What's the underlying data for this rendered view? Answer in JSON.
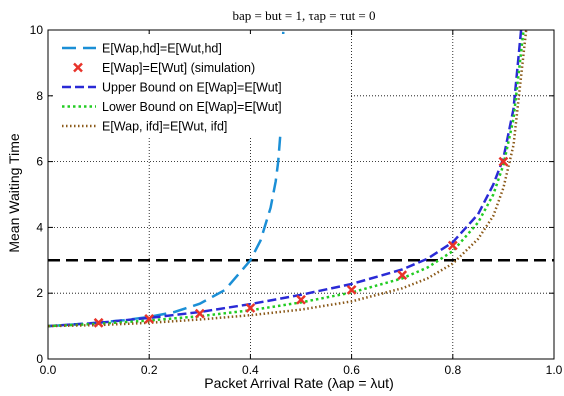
{
  "chart_data": {
    "type": "line",
    "title": "bap = but = 1, τap = τut = 0",
    "xlabel": "Packet Arrival Rate (λap = λut)",
    "ylabel": "Mean Waiting Time",
    "xlim": [
      0,
      1
    ],
    "ylim": [
      0,
      10
    ],
    "x_ticks": [
      0.0,
      0.2,
      0.4,
      0.6,
      0.8,
      1.0
    ],
    "x_tick_labels": [
      "0.0",
      "0.2",
      "0.4",
      "0.6",
      "0.8",
      "1.0"
    ],
    "y_ticks": [
      0,
      2,
      4,
      6,
      8,
      10
    ],
    "y_tick_labels": [
      "0",
      "2",
      "4",
      "6",
      "8",
      "10"
    ],
    "grid": true,
    "legend_position": "top-left",
    "reference_line": {
      "y": 3,
      "color": "#000000",
      "style": "dashed"
    },
    "series": [
      {
        "name": "E[Wap,hd]=E[Wut,hd]",
        "color": "#1b8fd6",
        "style": "longdash",
        "x": [
          0,
          0.05,
          0.1,
          0.15,
          0.2,
          0.25,
          0.3,
          0.35,
          0.4,
          0.42,
          0.44,
          0.45,
          0.455,
          0.46,
          0.465
        ],
        "y": [
          1.0,
          1.05,
          1.11,
          1.18,
          1.28,
          1.43,
          1.68,
          2.1,
          3.0,
          3.6,
          4.6,
          5.4,
          6.0,
          7.0,
          10.0
        ]
      },
      {
        "name": "E[Wap]=E[Wut] (simulation)",
        "color": "#e8332a",
        "style": "marker-x",
        "x": [
          0.1,
          0.2,
          0.3,
          0.4,
          0.5,
          0.6,
          0.7,
          0.8,
          0.9
        ],
        "y": [
          1.1,
          1.22,
          1.38,
          1.55,
          1.8,
          2.1,
          2.55,
          3.45,
          6.0
        ]
      },
      {
        "name": "Upper Bound on E[Wap]=E[Wut]",
        "color": "#2a2ad6",
        "style": "dashed",
        "x": [
          0,
          0.1,
          0.2,
          0.3,
          0.4,
          0.5,
          0.6,
          0.7,
          0.75,
          0.8,
          0.85,
          0.88,
          0.9,
          0.92,
          0.935
        ],
        "y": [
          1.0,
          1.1,
          1.25,
          1.43,
          1.67,
          1.95,
          2.28,
          2.72,
          3.05,
          3.55,
          4.4,
          5.3,
          6.1,
          7.6,
          10.0
        ]
      },
      {
        "name": "Lower Bound on E[Wap]=E[Wut]",
        "color": "#22cc22",
        "style": "dotted",
        "x": [
          0,
          0.1,
          0.2,
          0.3,
          0.4,
          0.5,
          0.6,
          0.7,
          0.75,
          0.8,
          0.85,
          0.88,
          0.9,
          0.92,
          0.94
        ],
        "y": [
          1.0,
          1.07,
          1.17,
          1.3,
          1.48,
          1.72,
          2.02,
          2.45,
          2.78,
          3.28,
          4.15,
          5.0,
          5.9,
          7.3,
          10.0
        ]
      },
      {
        "name": "E[Wap, ifd]=E[Wut, ifd]",
        "color": "#8b5a1a",
        "style": "densedot",
        "x": [
          0,
          0.1,
          0.2,
          0.3,
          0.4,
          0.5,
          0.6,
          0.7,
          0.75,
          0.8,
          0.85,
          0.88,
          0.9,
          0.92,
          0.945
        ],
        "y": [
          1.0,
          1.03,
          1.1,
          1.2,
          1.33,
          1.5,
          1.75,
          2.15,
          2.45,
          2.9,
          3.65,
          4.35,
          5.2,
          6.5,
          10.0
        ]
      }
    ]
  }
}
